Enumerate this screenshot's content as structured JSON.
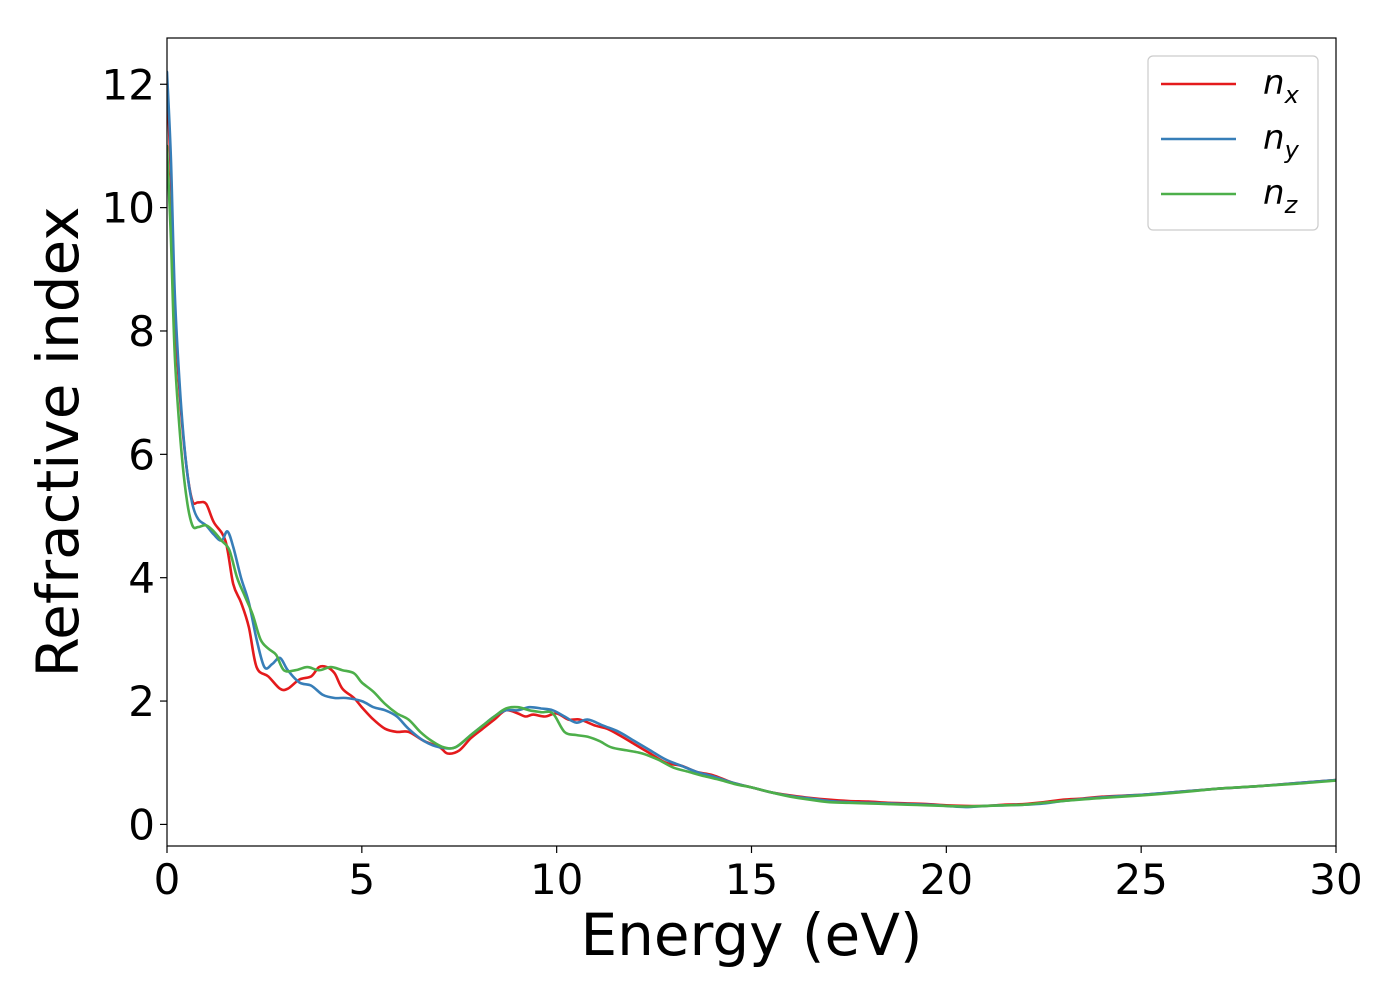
{
  "chart_data": {
    "type": "line",
    "xlabel": "Energy (eV)",
    "ylabel": "Refractive index",
    "xlim": [
      0,
      30
    ],
    "ylim": [
      -0.35,
      12.75
    ],
    "xticks": [
      "0",
      "5",
      "10",
      "15",
      "20",
      "25",
      "30"
    ],
    "yticks": [
      "0",
      "2",
      "4",
      "6",
      "8",
      "10",
      "12"
    ],
    "grid": false,
    "legend_position": "top-right",
    "series": [
      {
        "name": "n",
        "subscript": "x",
        "color": "#e41a1c",
        "x": [
          0,
          0.1,
          0.2,
          0.35,
          0.5,
          0.65,
          0.8,
          1.0,
          1.2,
          1.5,
          1.7,
          1.9,
          2.1,
          2.3,
          2.6,
          2.9,
          3.1,
          3.4,
          3.7,
          3.9,
          4.1,
          4.3,
          4.5,
          4.8,
          5.0,
          5.3,
          5.6,
          5.9,
          6.2,
          6.6,
          7.0,
          7.2,
          7.5,
          7.8,
          8.1,
          8.4,
          8.7,
          9.0,
          9.2,
          9.4,
          9.7,
          10.0,
          10.3,
          10.6,
          11.0,
          11.3,
          11.6,
          12.0,
          12.4,
          12.8,
          13.2,
          13.6,
          14.0,
          14.5,
          15.0,
          15.5,
          16.0,
          16.5,
          17.0,
          17.5,
          18.0,
          18.5,
          19.0,
          19.5,
          20.0,
          20.5,
          21.0,
          21.5,
          22.0,
          22.5,
          23.0,
          23.5,
          24.0,
          25.0,
          26.0,
          27.0,
          28.0,
          29.0,
          30.0
        ],
        "y": [
          12.1,
          10.5,
          8.3,
          6.8,
          5.8,
          5.25,
          5.22,
          5.2,
          4.9,
          4.6,
          3.9,
          3.6,
          3.2,
          2.55,
          2.4,
          2.2,
          2.2,
          2.35,
          2.4,
          2.55,
          2.55,
          2.45,
          2.2,
          2.05,
          1.9,
          1.7,
          1.55,
          1.5,
          1.5,
          1.35,
          1.25,
          1.15,
          1.2,
          1.4,
          1.55,
          1.7,
          1.85,
          1.8,
          1.75,
          1.78,
          1.75,
          1.8,
          1.7,
          1.7,
          1.6,
          1.55,
          1.45,
          1.3,
          1.15,
          1.0,
          0.95,
          0.85,
          0.8,
          0.68,
          0.6,
          0.52,
          0.47,
          0.43,
          0.4,
          0.38,
          0.37,
          0.35,
          0.34,
          0.33,
          0.31,
          0.3,
          0.3,
          0.32,
          0.33,
          0.36,
          0.4,
          0.42,
          0.45,
          0.48,
          0.53,
          0.58,
          0.62,
          0.67,
          0.72
        ]
      },
      {
        "name": "n",
        "subscript": "y",
        "color": "#377eb8",
        "x": [
          0,
          0.1,
          0.2,
          0.35,
          0.5,
          0.65,
          0.8,
          1.0,
          1.2,
          1.4,
          1.55,
          1.7,
          1.9,
          2.1,
          2.3,
          2.5,
          2.7,
          2.9,
          3.1,
          3.4,
          3.7,
          4.0,
          4.3,
          4.6,
          5.0,
          5.3,
          5.6,
          5.9,
          6.2,
          6.6,
          7.0,
          7.4,
          7.8,
          8.1,
          8.4,
          8.7,
          9.0,
          9.3,
          9.6,
          9.9,
          10.2,
          10.5,
          10.8,
          11.2,
          11.6,
          12.0,
          12.4,
          12.8,
          13.2,
          13.6,
          14.0,
          14.5,
          15.0,
          15.5,
          16.0,
          16.5,
          17.0,
          17.5,
          18.0,
          18.5,
          19.0,
          19.5,
          20.0,
          20.5,
          21.0,
          21.5,
          22.0,
          22.5,
          23.0,
          24.0,
          25.0,
          26.0,
          27.0,
          28.0,
          29.0,
          30.0
        ],
        "y": [
          12.2,
          10.8,
          8.6,
          6.9,
          5.8,
          5.2,
          4.95,
          4.85,
          4.7,
          4.6,
          4.75,
          4.5,
          4.0,
          3.6,
          3.0,
          2.55,
          2.6,
          2.7,
          2.5,
          2.3,
          2.25,
          2.1,
          2.05,
          2.05,
          2.0,
          1.9,
          1.85,
          1.75,
          1.55,
          1.35,
          1.25,
          1.25,
          1.45,
          1.6,
          1.75,
          1.85,
          1.85,
          1.9,
          1.88,
          1.85,
          1.75,
          1.65,
          1.7,
          1.6,
          1.5,
          1.35,
          1.2,
          1.05,
          0.95,
          0.85,
          0.78,
          0.68,
          0.6,
          0.52,
          0.46,
          0.42,
          0.38,
          0.36,
          0.35,
          0.34,
          0.33,
          0.32,
          0.3,
          0.28,
          0.3,
          0.31,
          0.32,
          0.34,
          0.38,
          0.44,
          0.48,
          0.53,
          0.58,
          0.62,
          0.67,
          0.72
        ]
      },
      {
        "name": "n",
        "subscript": "z",
        "color": "#4daf4a",
        "x": [
          0,
          0.1,
          0.2,
          0.35,
          0.5,
          0.65,
          0.8,
          1.0,
          1.2,
          1.4,
          1.6,
          1.8,
          2.0,
          2.2,
          2.4,
          2.6,
          2.8,
          3.0,
          3.3,
          3.6,
          3.9,
          4.2,
          4.5,
          4.8,
          5.0,
          5.3,
          5.6,
          5.9,
          6.2,
          6.5,
          6.8,
          7.1,
          7.4,
          7.8,
          8.1,
          8.4,
          8.7,
          9.0,
          9.3,
          9.6,
          9.9,
          10.2,
          10.5,
          10.8,
          11.1,
          11.4,
          11.8,
          12.2,
          12.6,
          13.0,
          13.4,
          13.8,
          14.2,
          14.6,
          15.0,
          15.5,
          16.0,
          16.5,
          17.0,
          17.5,
          18.0,
          18.5,
          19.0,
          19.5,
          20.0,
          20.5,
          21.0,
          21.5,
          22.0,
          22.5,
          23.0,
          24.0,
          25.0,
          26.0,
          27.0,
          28.0,
          29.0,
          30.0
        ],
        "y": [
          11.0,
          9.5,
          7.6,
          6.2,
          5.3,
          4.85,
          4.82,
          4.85,
          4.75,
          4.6,
          4.45,
          4.0,
          3.7,
          3.4,
          3.0,
          2.85,
          2.75,
          2.5,
          2.5,
          2.55,
          2.5,
          2.55,
          2.5,
          2.45,
          2.3,
          2.15,
          1.95,
          1.8,
          1.7,
          1.5,
          1.35,
          1.25,
          1.25,
          1.45,
          1.6,
          1.75,
          1.88,
          1.9,
          1.85,
          1.82,
          1.8,
          1.5,
          1.45,
          1.42,
          1.35,
          1.25,
          1.2,
          1.15,
          1.05,
          0.92,
          0.85,
          0.78,
          0.72,
          0.65,
          0.6,
          0.52,
          0.45,
          0.4,
          0.36,
          0.35,
          0.34,
          0.33,
          0.32,
          0.31,
          0.3,
          0.29,
          0.3,
          0.31,
          0.32,
          0.35,
          0.38,
          0.43,
          0.47,
          0.52,
          0.58,
          0.62,
          0.66,
          0.71
        ]
      }
    ]
  }
}
